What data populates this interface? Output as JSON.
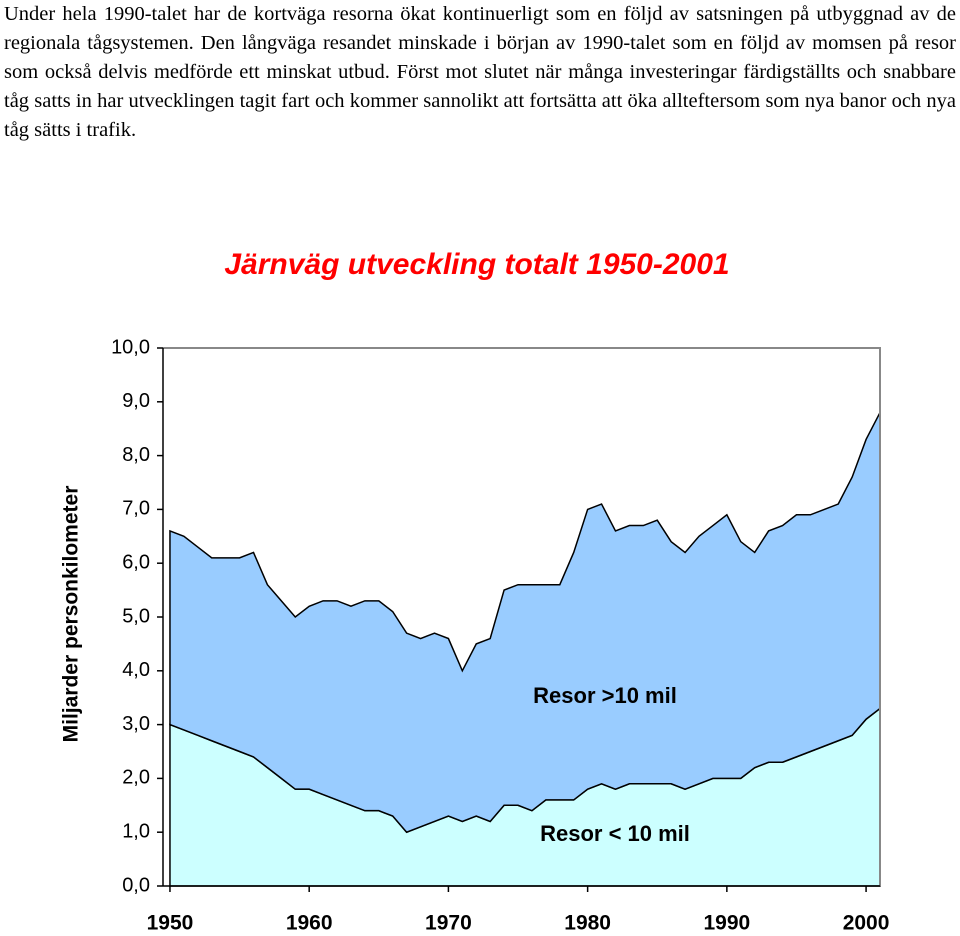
{
  "text": "Under hela 1990-talet har de kortväga resorna ökat kontinuerligt som en följd av satsningen på utbyggnad av de regionala tågsystemen. Den långväga resandet minskade i början av 1990-talet som en följd av momsen på resor som också delvis medförde ett minskat utbud. Först mot slutet när många investeringar färdigställts och snabbare tåg satts in har utvecklingen tagit fart och kommer sannolikt att fortsätta att öka allteftersom som nya banor och nya tåg sätts i trafik.",
  "chart_data": {
    "type": "stacked-area",
    "title": "Järnväg utveckling totalt 1950-2001",
    "y_label": "Miljarder personkilometer",
    "x": [
      1950,
      1951,
      1952,
      1953,
      1954,
      1955,
      1956,
      1957,
      1958,
      1959,
      1960,
      1961,
      1962,
      1963,
      1964,
      1965,
      1966,
      1967,
      1968,
      1969,
      1970,
      1971,
      1972,
      1973,
      1974,
      1975,
      1976,
      1977,
      1978,
      1979,
      1980,
      1981,
      1982,
      1983,
      1984,
      1985,
      1986,
      1987,
      1988,
      1989,
      1990,
      1991,
      1992,
      1993,
      1994,
      1995,
      1996,
      1997,
      1998,
      1999,
      2000,
      2001
    ],
    "series": [
      {
        "name": "Resor < 10 mil",
        "color": "#ccffff",
        "values": [
          3.0,
          2.9,
          2.8,
          2.7,
          2.6,
          2.5,
          2.4,
          2.2,
          2.0,
          1.8,
          1.8,
          1.7,
          1.6,
          1.5,
          1.4,
          1.4,
          1.3,
          1.0,
          1.1,
          1.2,
          1.3,
          1.2,
          1.3,
          1.2,
          1.5,
          1.5,
          1.4,
          1.6,
          1.6,
          1.6,
          1.8,
          1.9,
          1.8,
          1.9,
          1.9,
          1.9,
          1.9,
          1.8,
          1.9,
          2.0,
          2.0,
          2.0,
          2.2,
          2.3,
          2.3,
          2.4,
          2.5,
          2.6,
          2.7,
          2.8,
          3.1,
          3.3
        ]
      },
      {
        "name": "Resor >10 mil",
        "color": "#99ccff",
        "values": [
          3.6,
          3.6,
          3.5,
          3.4,
          3.5,
          3.6,
          3.8,
          3.4,
          3.3,
          3.2,
          3.4,
          3.6,
          3.7,
          3.7,
          3.9,
          3.9,
          3.8,
          3.7,
          3.5,
          3.5,
          3.3,
          2.8,
          3.2,
          3.4,
          4.0,
          4.1,
          4.2,
          4.0,
          4.0,
          4.6,
          5.2,
          5.2,
          4.8,
          4.8,
          4.8,
          4.9,
          4.5,
          4.4,
          4.6,
          4.7,
          4.9,
          4.4,
          4.0,
          4.3,
          4.4,
          4.5,
          4.4,
          4.4,
          4.4,
          4.8,
          5.2,
          5.5
        ]
      }
    ],
    "xlim": [
      1949.5,
      2001
    ],
    "xticks": [
      1950,
      1960,
      1970,
      1980,
      1990,
      2000
    ],
    "ylim": [
      0,
      10
    ],
    "yticks": [
      {
        "value": 0,
        "label": "0,0"
      },
      {
        "value": 1,
        "label": "1,0"
      },
      {
        "value": 2,
        "label": "2,0"
      },
      {
        "value": 3,
        "label": "3,0"
      },
      {
        "value": 4,
        "label": "4,0"
      },
      {
        "value": 5,
        "label": "5,0"
      },
      {
        "value": 6,
        "label": "6,0"
      },
      {
        "value": 7,
        "label": "7,0"
      },
      {
        "value": 8,
        "label": "8,0"
      },
      {
        "value": 9,
        "label": "9,0"
      },
      {
        "value": 10,
        "label": "10,0"
      }
    ]
  }
}
